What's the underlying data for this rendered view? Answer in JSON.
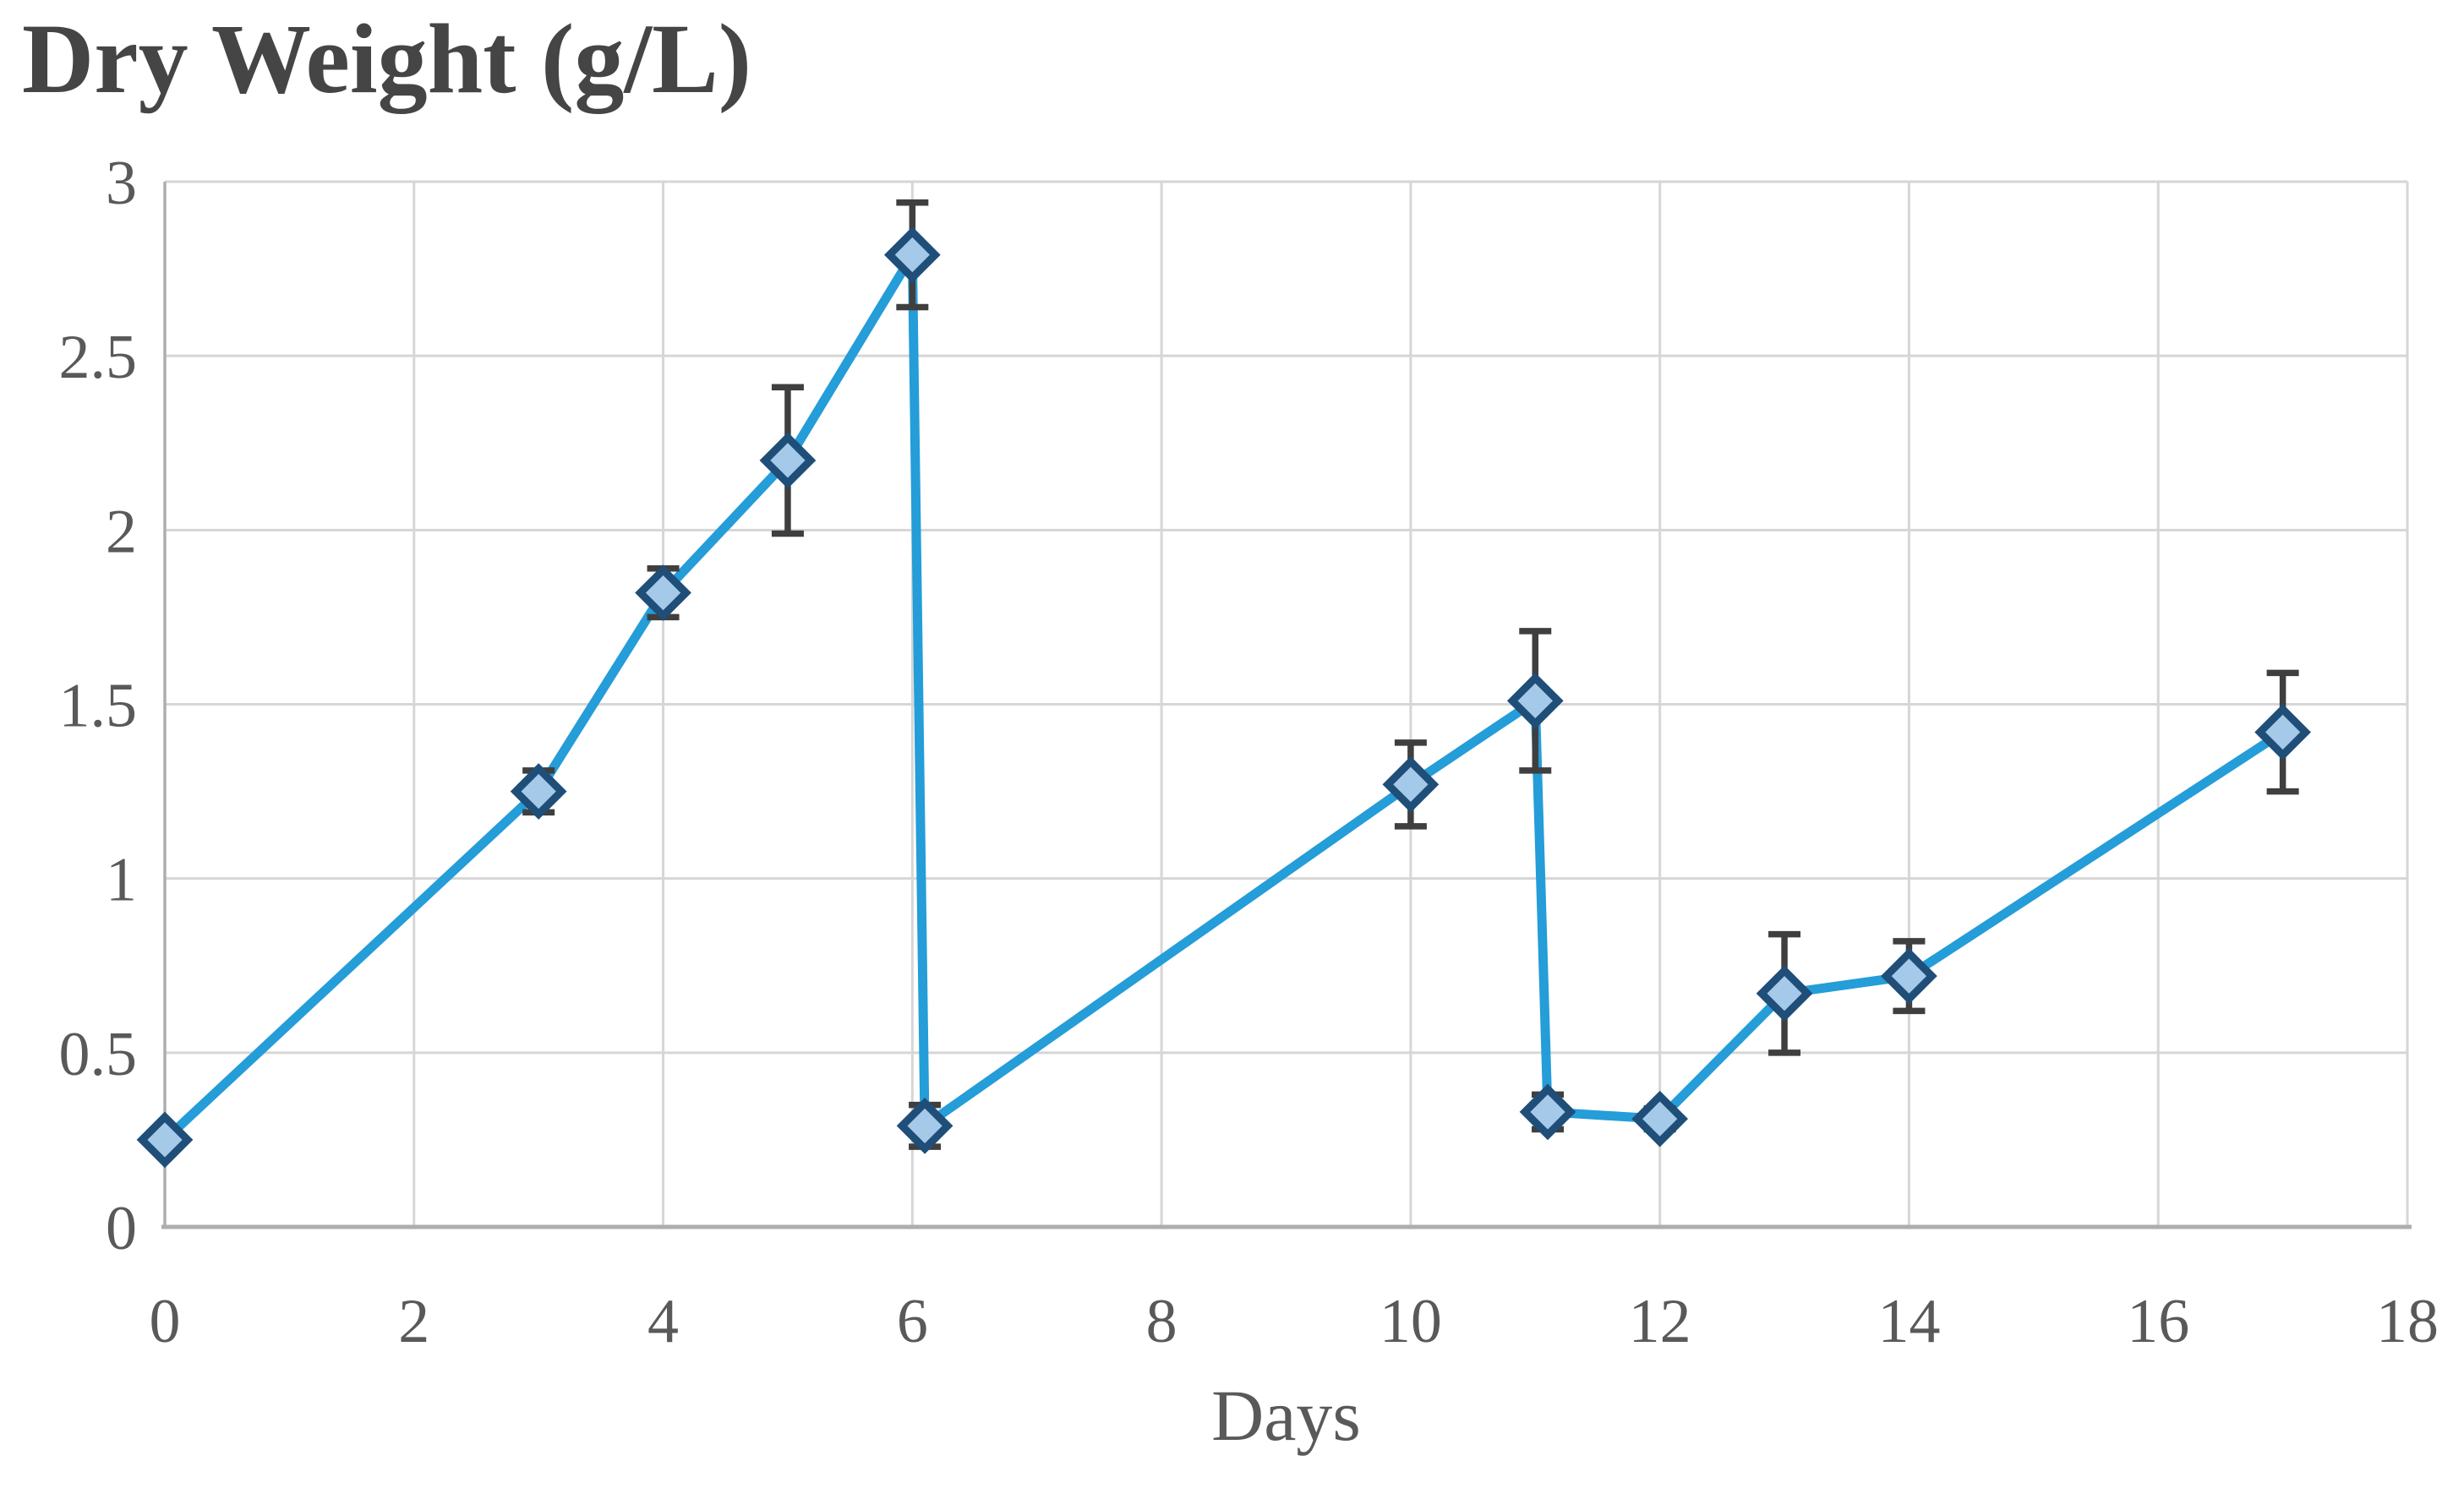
{
  "chart_data": {
    "type": "line",
    "title": "Dry Weight (g/L)",
    "xlabel": "Days",
    "ylabel": "",
    "xlim": [
      0,
      18
    ],
    "ylim": [
      0,
      3
    ],
    "x_ticks": [
      0,
      2,
      4,
      6,
      8,
      10,
      12,
      14,
      16,
      18
    ],
    "y_ticks": [
      0,
      0.5,
      1,
      1.5,
      2,
      2.5,
      3
    ],
    "grid": true,
    "legend": "none",
    "marker": "diamond",
    "series": [
      {
        "name": "Dry Weight",
        "points": [
          {
            "x": 0,
            "y": 0.25,
            "err": 0
          },
          {
            "x": 3,
            "y": 1.25,
            "err": 0.06
          },
          {
            "x": 4,
            "y": 1.82,
            "err": 0.07
          },
          {
            "x": 5,
            "y": 2.2,
            "err": 0.21
          },
          {
            "x": 6,
            "y": 2.79,
            "err": 0.15
          },
          {
            "x": 6.1,
            "y": 0.29,
            "err": 0.06
          },
          {
            "x": 10,
            "y": 1.27,
            "err": 0.12
          },
          {
            "x": 11,
            "y": 1.51,
            "err": 0.2
          },
          {
            "x": 11.1,
            "y": 0.33,
            "err": 0.05
          },
          {
            "x": 12,
            "y": 0.31,
            "err": 0.03
          },
          {
            "x": 13,
            "y": 0.67,
            "err": 0.17
          },
          {
            "x": 14,
            "y": 0.72,
            "err": 0.1
          },
          {
            "x": 17,
            "y": 1.42,
            "err": 0.17
          }
        ]
      }
    ],
    "colors": {
      "line": "#249DD8",
      "marker_fill": "#A5C9E9",
      "marker_stroke": "#1F4E79",
      "error_bar": "#3F3F3F",
      "gridline": "#D6D6D6",
      "axis": "#AEAEAE",
      "title_text": "#454545",
      "tick_text": "#595959"
    }
  }
}
